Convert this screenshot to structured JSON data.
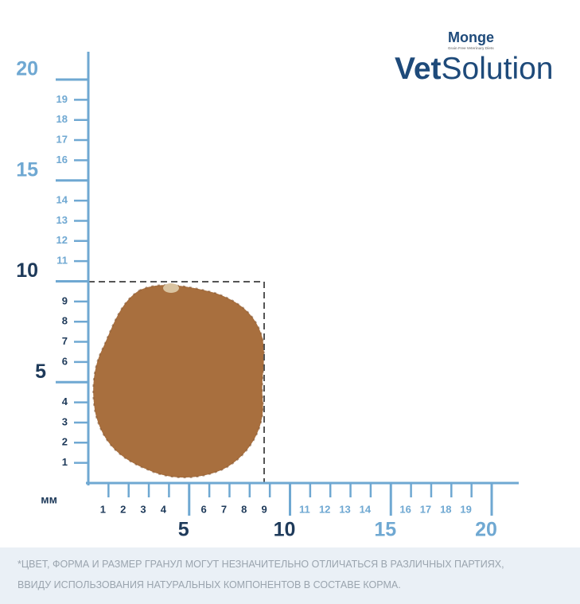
{
  "brand": {
    "name": "Monge",
    "tagline": "Grain Free Veterinary Diets",
    "product_bold": "Vet",
    "product_light": "Solution"
  },
  "y_ruler": {
    "minor": [
      1,
      2,
      3,
      4,
      6,
      7,
      8,
      9,
      11,
      12,
      13,
      14,
      16,
      17,
      18,
      19
    ],
    "major": [
      5,
      10,
      15,
      20
    ]
  },
  "x_ruler": {
    "unit": "мм",
    "minor": [
      1,
      2,
      3,
      4,
      6,
      7,
      8,
      9,
      11,
      12,
      13,
      14,
      16,
      17,
      18,
      19
    ],
    "major": [
      5,
      10,
      15,
      20
    ]
  },
  "footnote": [
    "*ЦВЕТ, ФОРМА И РАЗМЕР ГРАНУЛ МОГУТ НЕЗНАЧИТЕЛЬНО ОТЛИЧАТЬСЯ В РАЗЛИЧНЫХ ПАРТИЯХ,",
    "ВВИДУ ИСПОЛЬЗОВАНИЯ НАТУРАЛЬНЫХ КОМПОНЕНТОВ В СОСТАВЕ КОРМА."
  ]
}
